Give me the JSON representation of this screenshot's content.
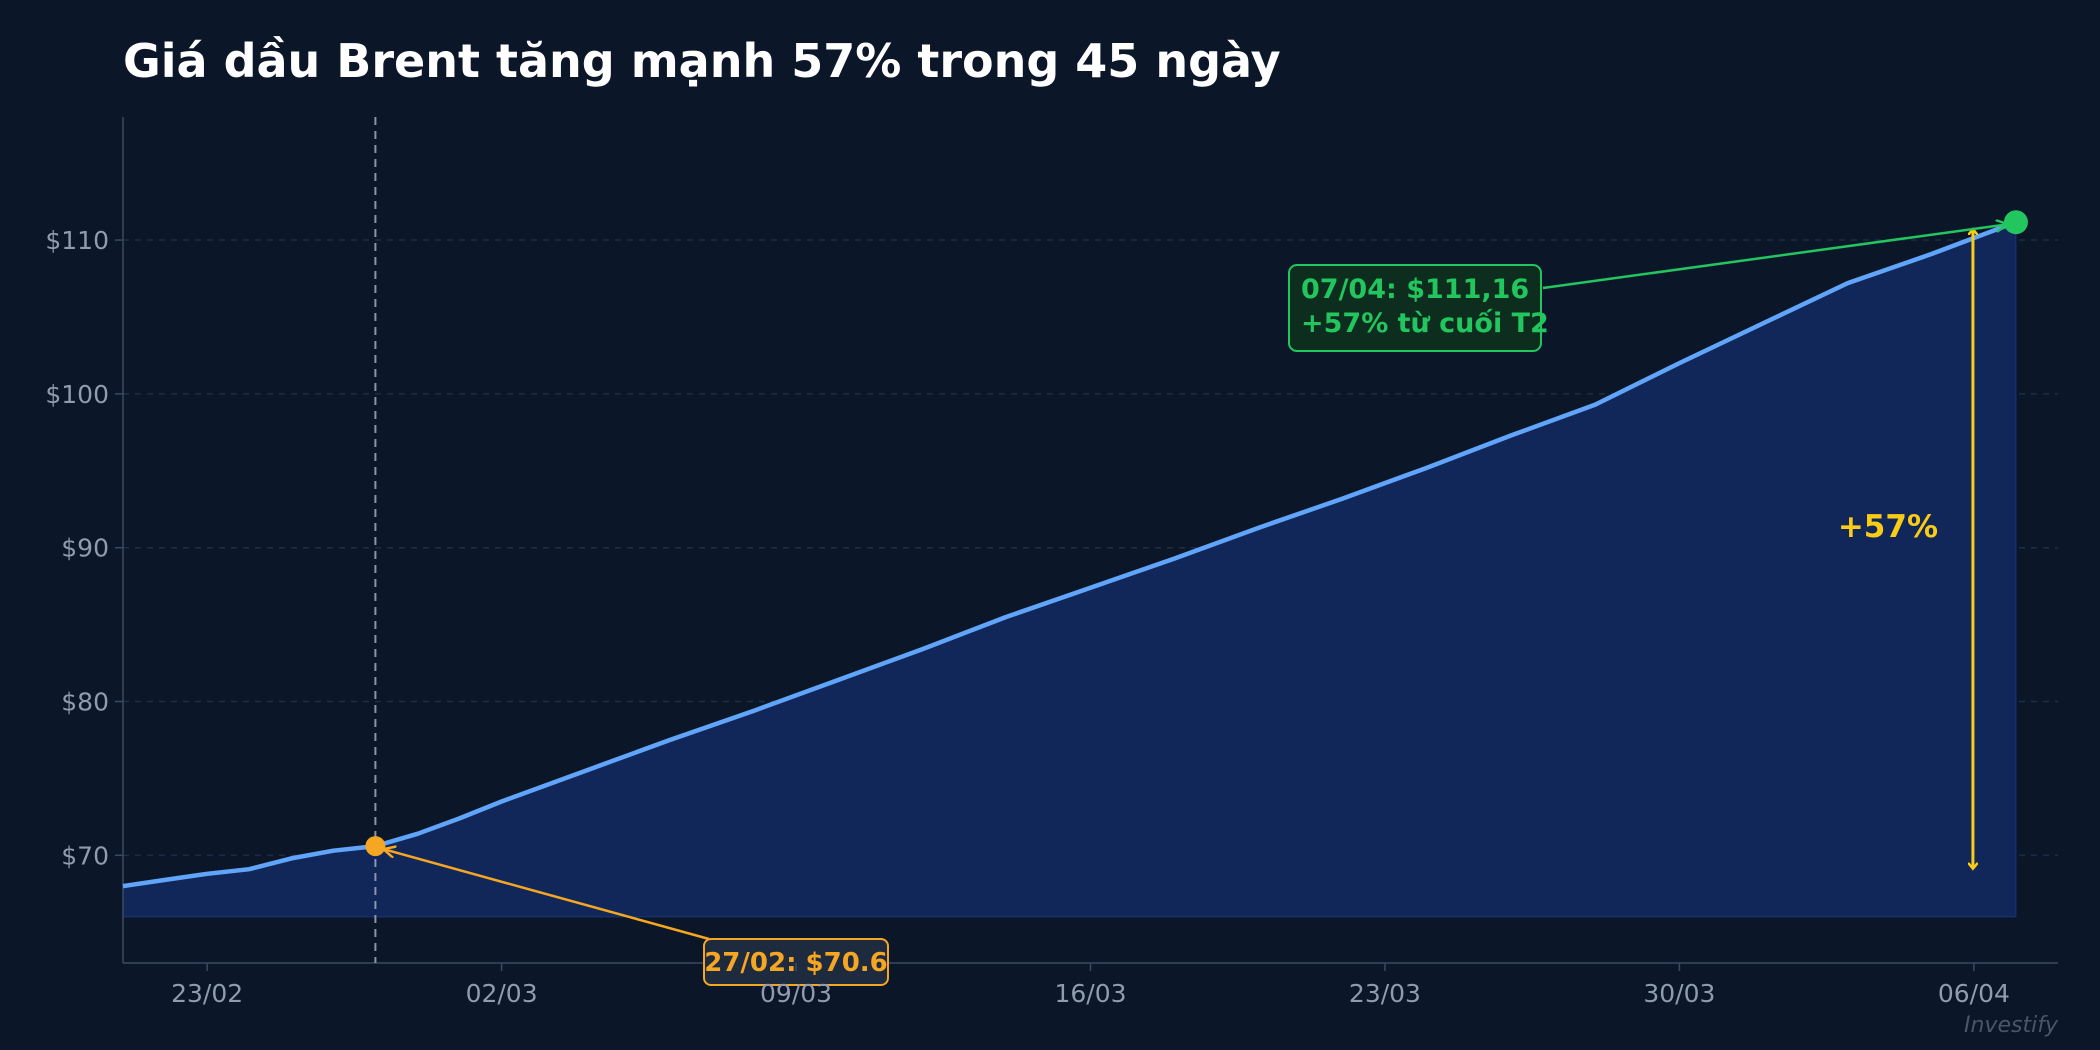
{
  "title": "Giá dầu Brent tăng mạnh 57% trong 45 ngày",
  "watermark": "Investify",
  "colors": {
    "background": "#0b1628",
    "line": "#60a5fa",
    "area": "#11275a",
    "start_marker": "#f5a623",
    "end_marker": "#22c55e",
    "change_arrow": "#facc15",
    "grid": "#1e2d45",
    "axis": "#3a4a63",
    "tick_text": "#8e9bb0"
  },
  "annotations": {
    "start_label": "27/02: $70.6",
    "end_label_line1": "07/04: $111,16",
    "end_label_line2": "+57% từ cuối T2",
    "change_label": "+57%"
  },
  "chart_data": {
    "type": "area",
    "title": "Giá dầu Brent tăng mạnh 57% trong 45 ngày",
    "xlabel": "",
    "ylabel": "",
    "x_tick_labels": [
      "23/02",
      "02/03",
      "09/03",
      "16/03",
      "23/03",
      "30/03",
      "06/04"
    ],
    "y_tick_labels": [
      "$70",
      "$80",
      "$90",
      "$100",
      "$110"
    ],
    "y_ticks": [
      70,
      80,
      90,
      100,
      110
    ],
    "ylim": [
      63,
      118
    ],
    "xlim": [
      "2026-02-21",
      "2026-04-08"
    ],
    "area_baseline": 66,
    "grid": true,
    "series": [
      {
        "x": [
          "2026-02-21",
          "2026-02-22",
          "2026-02-23",
          "2026-02-24",
          "2026-02-25",
          "2026-02-26",
          "2026-02-27",
          "2026-02-28",
          "2026-03-01",
          "2026-03-02",
          "2026-03-04",
          "2026-03-06",
          "2026-03-08",
          "2026-03-10",
          "2026-03-12",
          "2026-03-14",
          "2026-03-16",
          "2026-03-18",
          "2026-03-20",
          "2026-03-22",
          "2026-03-24",
          "2026-03-26",
          "2026-03-28",
          "2026-03-30",
          "2026-04-01",
          "2026-04-03",
          "2026-04-05",
          "2026-04-07"
        ],
        "y": [
          68.0,
          68.4,
          68.8,
          69.1,
          69.8,
          70.3,
          70.6,
          71.4,
          72.4,
          73.5,
          75.5,
          77.5,
          79.4,
          81.4,
          83.4,
          85.5,
          87.4,
          89.3,
          91.3,
          93.2,
          95.2,
          97.3,
          99.3,
          102.0,
          104.6,
          107.2,
          109.1,
          111.16
        ]
      }
    ],
    "highlight_points": [
      {
        "x": "2026-02-27",
        "y": 70.6,
        "label": "27/02: $70.6"
      },
      {
        "x": "2026-04-07",
        "y": 111.16,
        "label": "07/04: $111,16"
      }
    ],
    "vertical_line": "2026-02-27",
    "change_pct": "+57%"
  }
}
